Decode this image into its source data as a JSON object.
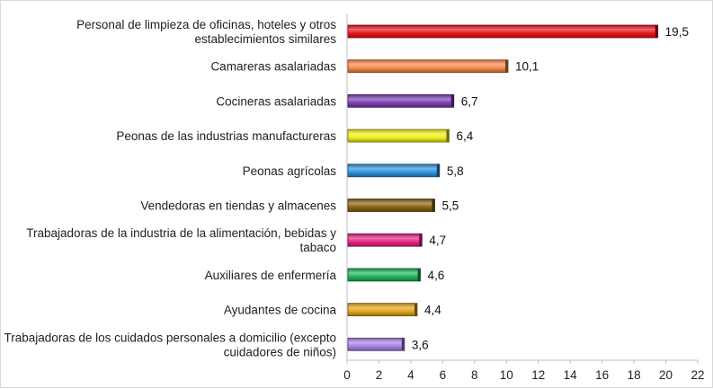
{
  "chart_data": {
    "type": "bar",
    "orientation": "horizontal",
    "categories": [
      [
        "Personal de limpieza de oficinas, hoteles y otros",
        "establecimientos similares"
      ],
      [
        "Camareras asalariadas"
      ],
      [
        "Cocineras asalariadas"
      ],
      [
        "Peonas de las industrias manufactureras"
      ],
      [
        "Peonas agrícolas"
      ],
      [
        "Vendedoras en tiendas y almacenes"
      ],
      [
        "Trabajadoras de la industria de la alimentación, bebidas y",
        "tabaco"
      ],
      [
        "Auxiliares de enfermería"
      ],
      [
        "Ayudantes de cocina"
      ],
      [
        "Trabajadoras de los cuidados personales a domicilio (excepto",
        "cuidadores de niños)"
      ]
    ],
    "values": [
      19.5,
      10.1,
      6.7,
      6.4,
      5.8,
      5.5,
      4.7,
      4.6,
      4.4,
      3.6
    ],
    "value_labels": [
      "19,5",
      "10,1",
      "6,7",
      "6,4",
      "5,8",
      "5,5",
      "4,7",
      "4,6",
      "4,4",
      "3,6"
    ],
    "bar_colors": [
      "#e8141b",
      "#f5894a",
      "#7b3fb5",
      "#f2f01a",
      "#2a93dd",
      "#8a6412",
      "#e3247e",
      "#22b35a",
      "#e0a61a",
      "#a983e6"
    ],
    "xlim": [
      0,
      22
    ],
    "xticks": [
      "0",
      "2",
      "4",
      "6",
      "8",
      "10",
      "12",
      "14",
      "16",
      "18",
      "20",
      "22"
    ],
    "grid": false,
    "legend": "none",
    "title": "",
    "xlabel": "",
    "ylabel": ""
  }
}
